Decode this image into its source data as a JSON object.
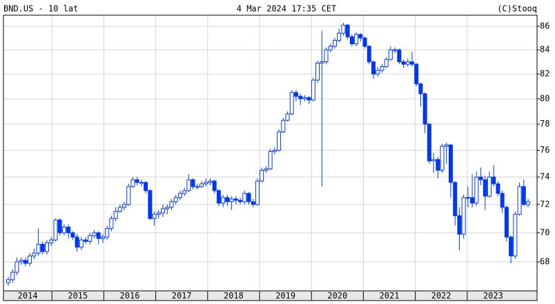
{
  "chart_data": {
    "type": "candlestick",
    "title": "BND.US - 10 lat",
    "subtitle": "4 Mar 2024 17:35 CET",
    "credit": "(C)Stooq",
    "years": [
      "2014",
      "2015",
      "2016",
      "2017",
      "2018",
      "2019",
      "2020",
      "2021",
      "2022",
      "2023"
    ],
    "open": [
      66.6,
      66.8,
      67.3,
      68.0,
      68.1,
      67.9,
      68.4,
      68.6,
      69.2,
      68.7,
      69.3,
      69.5,
      70.9,
      70.0,
      70.4,
      70.0,
      69.7,
      69.0,
      69.5,
      69.4,
      69.8,
      70.0,
      69.6,
      69.7,
      70.3,
      71.0,
      71.5,
      71.8,
      72.0,
      73.3,
      73.8,
      73.6,
      73.6,
      73.0,
      71.0,
      71.3,
      71.4,
      71.7,
      71.8,
      72.2,
      72.5,
      72.8,
      73.0,
      73.8,
      73.3,
      73.3,
      73.5,
      73.6,
      73.7,
      73.0,
      72.1,
      72.5,
      72.2,
      72.4,
      72.3,
      72.2,
      72.8,
      72.2,
      72.0,
      73.7,
      74.5,
      74.6,
      75.9,
      76.0,
      77.4,
      78.3,
      78.8,
      80.5,
      80.2,
      80.0,
      80.1,
      79.9,
      81.5,
      82.9,
      83.0,
      84.0,
      84.3,
      84.8,
      85.4,
      86.1,
      85.1,
      84.5,
      85.3,
      85.0,
      84.3,
      83.0,
      82.0,
      82.3,
      82.6,
      83.2,
      84.0,
      84.0,
      83.0,
      82.8,
      83.0,
      82.8,
      81.2,
      80.4,
      78.0,
      75.2,
      75.3,
      74.5,
      76.3,
      76.4,
      73.6,
      71.2,
      69.9,
      72.5,
      72.5,
      72.1,
      74.0,
      73.8,
      72.6,
      74.0,
      73.5,
      72.8,
      71.8,
      69.7,
      68.4,
      71.3,
      73.3,
      72.0
    ],
    "high": [
      67.0,
      67.5,
      68.3,
      68.3,
      68.3,
      68.6,
      68.9,
      70.3,
      69.4,
      69.5,
      69.7,
      71.0,
      71.0,
      70.6,
      70.6,
      70.1,
      69.9,
      69.7,
      69.7,
      70.0,
      70.2,
      70.1,
      69.9,
      70.5,
      71.2,
      71.8,
      72.0,
      72.2,
      73.5,
      74.0,
      74.0,
      73.8,
      73.7,
      73.1,
      71.5,
      71.6,
      72.0,
      72.0,
      72.4,
      72.7,
      73.0,
      73.2,
      74.2,
      73.9,
      73.5,
      73.7,
      73.9,
      73.9,
      73.8,
      73.1,
      72.7,
      72.7,
      72.6,
      72.6,
      72.5,
      73.0,
      72.9,
      72.4,
      73.9,
      74.7,
      74.8,
      76.1,
      76.2,
      77.6,
      78.5,
      79.0,
      80.7,
      80.7,
      80.4,
      80.3,
      80.2,
      81.7,
      83.1,
      85.6,
      84.2,
      84.5,
      85.0,
      85.8,
      86.3,
      86.2,
      85.3,
      85.5,
      85.4,
      85.1,
      84.4,
      83.1,
      82.6,
      82.8,
      83.4,
      84.3,
      84.2,
      84.1,
      83.2,
      83.3,
      83.8,
      82.9,
      81.3,
      80.5,
      78.1,
      75.8,
      75.5,
      76.5,
      76.6,
      76.5,
      73.7,
      71.8,
      72.7,
      73.3,
      74.2,
      74.4,
      74.7,
      74.1,
      74.4,
      74.9,
      73.7,
      73.0,
      71.9,
      69.8,
      71.5,
      73.6,
      73.8,
      72.4
    ],
    "low": [
      66.4,
      66.6,
      67.1,
      67.8,
      67.7,
      67.7,
      68.2,
      68.4,
      68.5,
      68.5,
      69.1,
      69.4,
      69.8,
      69.8,
      69.6,
      69.5,
      68.7,
      68.8,
      69.2,
      69.2,
      69.6,
      69.2,
      69.3,
      69.5,
      70.1,
      70.8,
      71.4,
      71.6,
      71.9,
      73.2,
      73.4,
      73.3,
      72.8,
      70.9,
      70.5,
      71.0,
      71.1,
      71.3,
      71.6,
      72.0,
      72.3,
      72.6,
      72.9,
      73.1,
      73.1,
      73.2,
      73.3,
      73.4,
      72.8,
      71.9,
      71.8,
      71.9,
      71.6,
      72.0,
      72.0,
      72.0,
      72.0,
      71.8,
      71.9,
      73.6,
      74.3,
      74.5,
      75.7,
      75.9,
      77.3,
      78.2,
      78.7,
      79.8,
      79.5,
      79.8,
      79.6,
      79.8,
      81.3,
      73.3,
      82.8,
      83.8,
      84.1,
      84.6,
      85.2,
      84.9,
      84.3,
      84.3,
      84.7,
      84.1,
      82.8,
      81.6,
      81.8,
      82.1,
      82.5,
      83.1,
      83.7,
      82.8,
      82.5,
      82.6,
      82.6,
      81.0,
      79.4,
      77.3,
      75.0,
      74.3,
      73.9,
      74.3,
      75.0,
      72.5,
      70.5,
      68.8,
      69.6,
      71.8,
      71.8,
      71.9,
      73.4,
      71.6,
      72.5,
      73.3,
      72.6,
      71.4,
      69.4,
      67.9,
      68.2,
      71.2,
      71.9,
      71.8
    ],
    "close": [
      66.8,
      67.3,
      68.0,
      68.1,
      67.9,
      68.4,
      68.6,
      69.2,
      68.7,
      69.3,
      69.5,
      70.9,
      70.0,
      70.4,
      70.0,
      69.7,
      69.0,
      69.5,
      69.4,
      69.8,
      70.0,
      69.6,
      69.7,
      70.3,
      71.0,
      71.5,
      71.8,
      72.0,
      73.3,
      73.8,
      73.6,
      73.6,
      73.0,
      71.0,
      71.3,
      71.4,
      71.7,
      71.8,
      72.2,
      72.5,
      72.8,
      73.0,
      73.8,
      73.3,
      73.3,
      73.5,
      73.6,
      73.7,
      73.0,
      72.1,
      72.5,
      72.2,
      72.4,
      72.3,
      72.2,
      72.8,
      72.2,
      72.0,
      73.7,
      74.5,
      74.6,
      75.9,
      76.0,
      77.4,
      78.3,
      78.8,
      80.5,
      80.2,
      80.0,
      80.1,
      79.9,
      81.5,
      82.9,
      83.0,
      84.0,
      84.3,
      84.8,
      85.4,
      86.1,
      85.1,
      84.5,
      85.3,
      85.0,
      84.3,
      83.0,
      82.0,
      82.3,
      82.6,
      83.2,
      84.0,
      84.0,
      83.0,
      82.8,
      83.0,
      82.8,
      81.2,
      80.4,
      78.0,
      75.2,
      75.3,
      74.5,
      76.3,
      76.4,
      73.6,
      71.2,
      69.9,
      72.5,
      72.5,
      72.1,
      74.0,
      73.8,
      72.6,
      74.0,
      73.5,
      72.8,
      71.8,
      69.7,
      68.4,
      71.3,
      73.3,
      72.0,
      72.2
    ],
    "color": "#0038f0",
    "ylim": [
      66.06,
      86.95
    ],
    "yticks": [
      68,
      70,
      72,
      74,
      76,
      78,
      80,
      82,
      84,
      86
    ],
    "log_scale": true,
    "grid": true
  }
}
